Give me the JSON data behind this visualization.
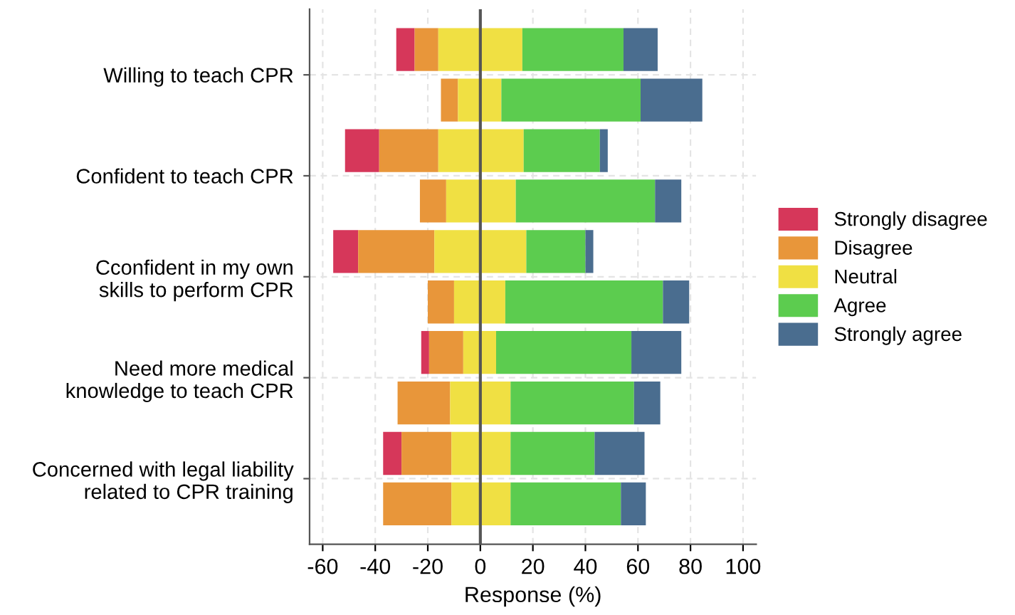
{
  "chart_data": {
    "type": "bar",
    "orientation": "horizontal",
    "categories": [
      "Willing to teach CPR",
      null,
      "Confident to teach CPR",
      null,
      "Cconfident in my own\nskills to perform CPR",
      null,
      "Need more medical\nknowledge to teach CPR",
      null,
      "Concerned with legal liability\nrelated to CPR training",
      null
    ],
    "series": [
      {
        "name": "Strongly disagree",
        "color": "#d6375a",
        "base": [
          -32,
          null,
          -51.5,
          null,
          -56,
          null,
          -22.5,
          null,
          -37,
          null
        ],
        "values": [
          7,
          0,
          13,
          0,
          9.5,
          0,
          3,
          0,
          7,
          0
        ]
      },
      {
        "name": "Disagree",
        "color": "#e8963a",
        "base": [
          -25,
          -15,
          -38.5,
          -23,
          -46.5,
          -20,
          -19.5,
          -31.5,
          -30,
          -37
        ],
        "values": [
          9,
          6.5,
          22.5,
          10,
          29,
          10,
          13,
          20,
          19,
          26
        ]
      },
      {
        "name": "Neutral",
        "color": "#f0e043",
        "base": [
          -16,
          -8.5,
          -16,
          -13,
          -17.5,
          -10,
          -6.5,
          -11.5,
          -11,
          -11
        ],
        "values": [
          32,
          16.5,
          32.5,
          26.5,
          35,
          19.5,
          12.5,
          23,
          22.5,
          22.5
        ]
      },
      {
        "name": "Agree",
        "color": "#5ccc4f",
        "base": [
          16,
          8,
          16.5,
          13.5,
          17.5,
          9.5,
          6,
          11.5,
          11.5,
          11.5
        ],
        "values": [
          38.5,
          53,
          29,
          53,
          22.5,
          60,
          51.5,
          47,
          32,
          42
        ]
      },
      {
        "name": "Strongly agree",
        "color": "#4a6d8f",
        "base": [
          54.5,
          61,
          45.5,
          66.5,
          40,
          69.5,
          57.5,
          58.5,
          43.5,
          53.5
        ],
        "values": [
          13,
          23.5,
          3,
          10,
          3,
          10,
          19,
          10,
          19,
          9.5
        ]
      }
    ],
    "xlabel": "Response (%)",
    "xlim": [
      -65,
      105
    ],
    "xticks": [
      -60,
      -40,
      -20,
      0,
      20,
      40,
      60,
      80,
      100
    ],
    "ref_lines": [
      {
        "axis": "x",
        "value": 0,
        "color": "#555555"
      }
    ],
    "grid": true,
    "legend": "right"
  }
}
